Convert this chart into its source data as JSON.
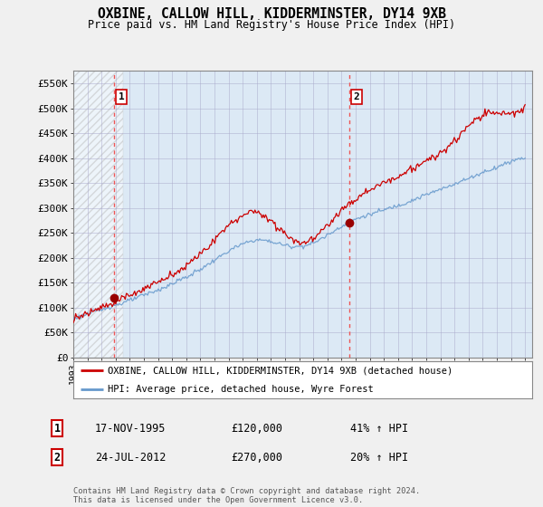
{
  "title": "OXBINE, CALLOW HILL, KIDDERMINSTER, DY14 9XB",
  "subtitle": "Price paid vs. HM Land Registry's House Price Index (HPI)",
  "ylabel_values": [
    "£0",
    "£50K",
    "£100K",
    "£150K",
    "£200K",
    "£250K",
    "£300K",
    "£350K",
    "£400K",
    "£450K",
    "£500K",
    "£550K"
  ],
  "yticks": [
    0,
    50000,
    100000,
    150000,
    200000,
    250000,
    300000,
    350000,
    400000,
    450000,
    500000,
    550000
  ],
  "ylim": [
    0,
    575000
  ],
  "xlim_start": 1993.0,
  "xlim_end": 2025.5,
  "background_color": "#f0f0f0",
  "plot_bg_color": "#dce9f5",
  "grid_color": "#aaaacc",
  "hpi_line_color": "#6699cc",
  "price_line_color": "#cc0000",
  "marker_color": "#990000",
  "dashed_line_color": "#ee5555",
  "sale1_x": 1995.88,
  "sale1_y": 120000,
  "sale1_label": "1",
  "sale2_x": 2012.56,
  "sale2_y": 270000,
  "sale2_label": "2",
  "legend_house_label": "OXBINE, CALLOW HILL, KIDDERMINSTER, DY14 9XB (detached house)",
  "legend_hpi_label": "HPI: Average price, detached house, Wyre Forest",
  "annotation1_date": "17-NOV-1995",
  "annotation1_price": "£120,000",
  "annotation1_hpi": "41% ↑ HPI",
  "annotation2_date": "24-JUL-2012",
  "annotation2_price": "£270,000",
  "annotation2_hpi": "20% ↑ HPI",
  "footnote": "Contains HM Land Registry data © Crown copyright and database right 2024.\nThis data is licensed under the Open Government Licence v3.0."
}
